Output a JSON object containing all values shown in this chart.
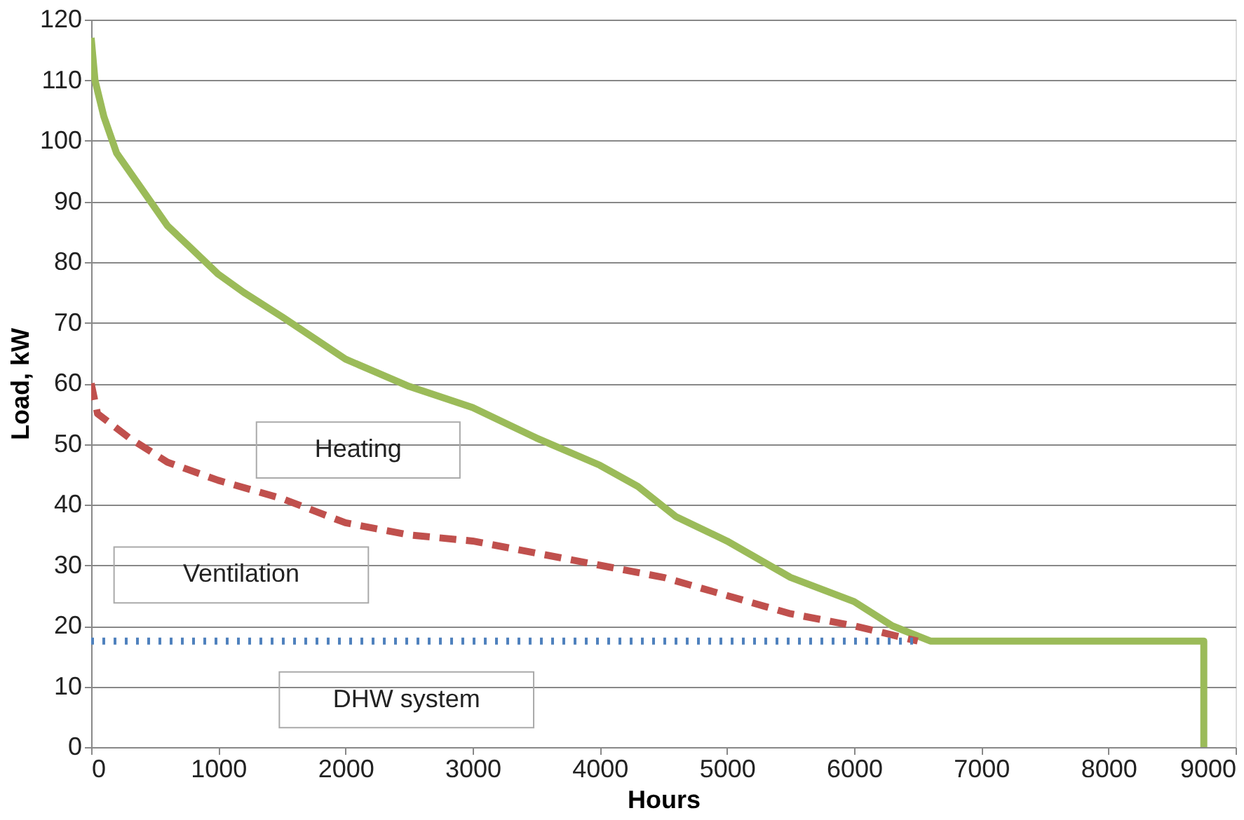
{
  "chart_data": {
    "type": "line",
    "xlabel": "Hours",
    "ylabel": "Load, kW",
    "xlim": [
      0,
      9000
    ],
    "xticks": [
      0,
      1000,
      2000,
      3000,
      4000,
      5000,
      6000,
      7000,
      8000,
      9000
    ],
    "ylim": [
      0,
      120
    ],
    "yticks": [
      0,
      10,
      20,
      30,
      40,
      50,
      60,
      70,
      80,
      90,
      100,
      110,
      120
    ],
    "grid": "y",
    "series": [
      {
        "name": "Heating",
        "color": "#9bbb59",
        "line_style": "solid",
        "x": [
          0,
          30,
          100,
          200,
          400,
          600,
          800,
          1000,
          1200,
          1500,
          2000,
          2500,
          3000,
          3500,
          4000,
          4300,
          4600,
          5000,
          5500,
          6000,
          6300,
          6600,
          8750,
          8750
        ],
        "values": [
          117,
          110,
          104,
          98,
          92,
          86,
          82,
          78,
          75,
          71,
          64,
          59.5,
          56,
          51,
          46.5,
          43,
          38,
          34,
          28,
          24,
          20,
          17.5,
          17.5,
          0
        ]
      },
      {
        "name": "Ventilation",
        "color": "#c0504d",
        "line_style": "dashed",
        "x": [
          0,
          50,
          300,
          600,
          1000,
          1500,
          2000,
          2500,
          3000,
          4000,
          4500,
          5000,
          5500,
          6000,
          6500
        ],
        "values": [
          60,
          55,
          51,
          47,
          44,
          41,
          37,
          35,
          34,
          30,
          28,
          25,
          22,
          20,
          17.5
        ]
      },
      {
        "name": "DHW system",
        "color": "#4f81bd",
        "line_style": "dotted",
        "x": [
          0,
          6500
        ],
        "values": [
          17.5,
          17.5
        ]
      }
    ]
  }
}
